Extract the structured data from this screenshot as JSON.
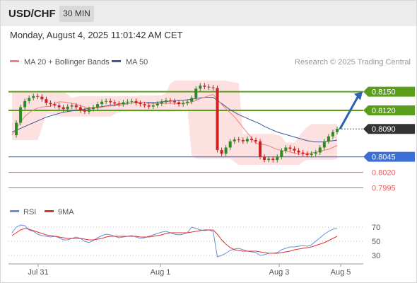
{
  "header": {
    "symbol": "USD/CHF",
    "timeframe": "30 MIN"
  },
  "datetime": "Monday, August 4, 2025 11:01:42 AM CET",
  "credit": "Research © 2025 Trading Central",
  "colors": {
    "ma20": "#f08080",
    "ma50": "#3b5b9a",
    "bollinger_fill": "#fde0e0",
    "resistance": "#5a9e1b",
    "pivot": "#3b6fd6",
    "support": "#e06060",
    "bull_candle": "#2e8b22",
    "bear_candle": "#cc2222",
    "arrow": "#2a62b0",
    "current_label": "#333333",
    "rsi": "#6a8fd8",
    "rsi_ma": "#e03030"
  },
  "chart_data": [
    {
      "type": "candlestick",
      "legend": [
        {
          "name": "MA 20 + Bollinger Bands",
          "color": "#f08080"
        },
        {
          "name": "MA 50",
          "color": "#3b5b9a"
        }
      ],
      "ylim": [
        0.7975,
        0.8185
      ],
      "x_ticks": [
        "Jul 31",
        "Aug 1",
        "Aug 3",
        "Aug 5"
      ],
      "levels": [
        {
          "label": "0.8150",
          "value": 0.815,
          "kind": "resistance"
        },
        {
          "label": "0.8120",
          "value": 0.812,
          "kind": "resistance"
        },
        {
          "label": "0.8090",
          "value": 0.809,
          "kind": "current"
        },
        {
          "label": "0.8045",
          "value": 0.8045,
          "kind": "pivot"
        },
        {
          "label": "0.8020",
          "value": 0.802,
          "kind": "support"
        },
        {
          "label": "0.7995",
          "value": 0.7995,
          "kind": "support"
        }
      ],
      "close_series": [
        0.808,
        0.81,
        0.8125,
        0.8135,
        0.814,
        0.8143,
        0.8142,
        0.8138,
        0.8132,
        0.813,
        0.8128,
        0.8125,
        0.8122,
        0.8126,
        0.8128,
        0.8125,
        0.812,
        0.8118,
        0.8122,
        0.8125,
        0.813,
        0.8134,
        0.8135,
        0.8133,
        0.8131,
        0.813,
        0.8133,
        0.8134,
        0.8135,
        0.8132,
        0.813,
        0.8128,
        0.8126,
        0.8128,
        0.8131,
        0.8134,
        0.8136,
        0.8135,
        0.8133,
        0.813,
        0.8132,
        0.8134,
        0.814,
        0.8155,
        0.816,
        0.8158,
        0.8157,
        0.8156,
        0.8056,
        0.805,
        0.806,
        0.807,
        0.8073,
        0.8072,
        0.807,
        0.8074,
        0.8072,
        0.807,
        0.8045,
        0.804,
        0.8042,
        0.804,
        0.8045,
        0.8055,
        0.806,
        0.8058,
        0.8055,
        0.8052,
        0.805,
        0.8048,
        0.805,
        0.8052,
        0.806,
        0.807,
        0.8078,
        0.8085,
        0.809
      ],
      "ma50_series": [
        0.8085,
        0.8088,
        0.8091,
        0.8094,
        0.8097,
        0.81,
        0.8103,
        0.8106,
        0.8109,
        0.8111,
        0.8113,
        0.8115,
        0.8117,
        0.8118,
        0.8119,
        0.812,
        0.8121,
        0.8122,
        0.8123,
        0.8124,
        0.8125,
        0.8126,
        0.8127,
        0.8128,
        0.8129,
        0.813,
        0.8131,
        0.8131,
        0.8132,
        0.8132,
        0.8132,
        0.8132,
        0.8133,
        0.8133,
        0.8133,
        0.8134,
        0.8134,
        0.8135,
        0.8135,
        0.8136,
        0.8136,
        0.8137,
        0.8138,
        0.8139,
        0.814,
        0.8141,
        0.8141,
        0.8141,
        0.8136,
        0.8131,
        0.8126,
        0.8121,
        0.8117,
        0.8113,
        0.811,
        0.8107,
        0.8104,
        0.8101,
        0.8098,
        0.8094,
        0.8091,
        0.8088,
        0.8085,
        0.8083,
        0.8081,
        0.8079,
        0.8077,
        0.8075,
        0.8073,
        0.8071,
        0.807,
        0.8069,
        0.8069,
        0.8069,
        0.807,
        0.8071,
        0.8072
      ],
      "arrow": {
        "from": 0.809,
        "to": 0.815
      }
    },
    {
      "type": "line",
      "legend": [
        {
          "name": "RSI",
          "color": "#6a8fd8"
        },
        {
          "name": "9MA",
          "color": "#e03030"
        }
      ],
      "ylim": [
        20,
        80
      ],
      "y_ticks": [
        "70",
        "50",
        "30"
      ],
      "rsi_series": [
        62,
        70,
        73,
        72,
        66,
        64,
        60,
        58,
        57,
        56,
        57,
        55,
        52,
        52,
        54,
        56,
        54,
        50,
        48,
        51,
        55,
        58,
        60,
        59,
        57,
        55,
        56,
        57,
        58,
        56,
        54,
        55,
        57,
        59,
        61,
        63,
        64,
        62,
        60,
        59,
        60,
        62,
        70,
        68,
        66,
        65,
        66,
        64,
        28,
        30,
        33,
        37,
        39,
        40,
        38,
        36,
        35,
        34,
        30,
        31,
        33,
        33,
        34,
        38,
        40,
        42,
        42,
        43,
        44,
        43,
        45,
        50,
        55,
        60,
        64,
        67,
        68
      ],
      "rsi_ma_series": [
        58,
        62,
        66,
        68,
        67,
        65,
        63,
        61,
        59,
        58,
        57,
        56,
        55,
        54,
        54,
        54,
        54,
        53,
        52,
        52,
        53,
        54,
        56,
        57,
        57,
        57,
        57,
        57,
        57,
        57,
        56,
        56,
        56,
        57,
        58,
        59,
        61,
        62,
        62,
        62,
        62,
        62,
        63,
        64,
        65,
        66,
        66,
        66,
        60,
        52,
        46,
        41,
        38,
        37,
        36,
        36,
        36,
        36,
        35,
        34,
        33,
        33,
        33,
        34,
        35,
        36,
        38,
        39,
        40,
        41,
        42,
        44,
        46,
        48,
        51,
        54,
        57
      ]
    }
  ]
}
